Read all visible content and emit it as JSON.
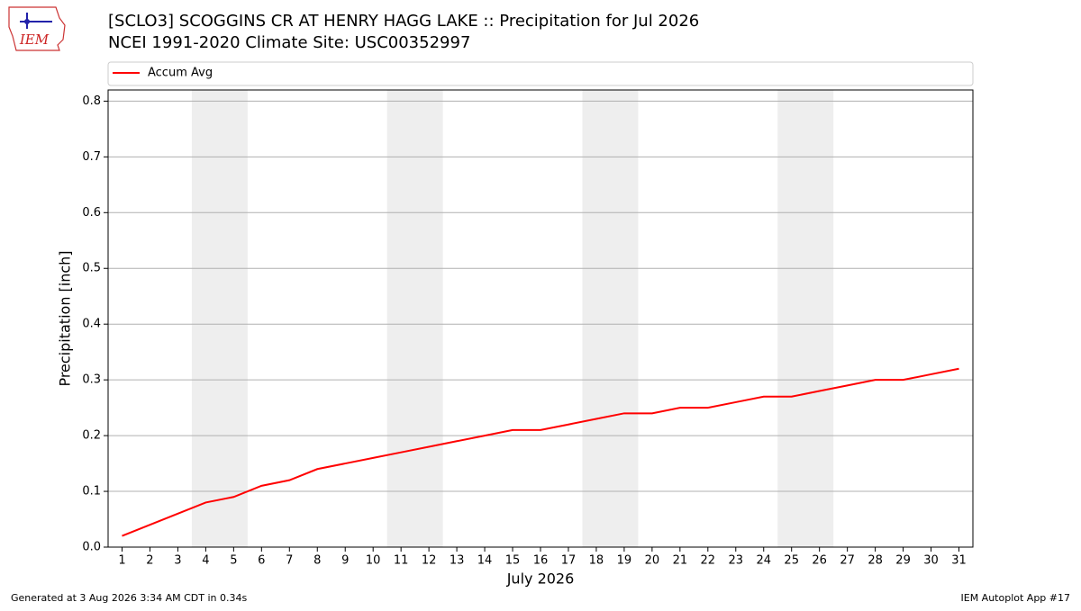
{
  "logo_text": "IEM",
  "chart_data": {
    "type": "line",
    "title": "[SCLO3] SCOGGINS CR  AT HENRY HAGG LAKE :: Precipitation for Jul 2026",
    "subtitle": "NCEI 1991-2020 Climate Site: USC00352997",
    "x_label": "July 2026",
    "y_label": "Precipitation [inch]",
    "x": [
      1,
      2,
      3,
      4,
      5,
      6,
      7,
      8,
      9,
      10,
      11,
      12,
      13,
      14,
      15,
      16,
      17,
      18,
      19,
      20,
      21,
      22,
      23,
      24,
      25,
      26,
      27,
      28,
      29,
      30,
      31
    ],
    "series": [
      {
        "name": "Accum Avg",
        "color": "#ff0000",
        "values": [
          0.02,
          0.04,
          0.06,
          0.08,
          0.09,
          0.11,
          0.12,
          0.14,
          0.15,
          0.16,
          0.17,
          0.18,
          0.19,
          0.2,
          0.21,
          0.21,
          0.22,
          0.23,
          0.24,
          0.24,
          0.25,
          0.25,
          0.26,
          0.27,
          0.27,
          0.28,
          0.29,
          0.3,
          0.3,
          0.31,
          0.32
        ]
      }
    ],
    "xlim": [
      0.5,
      31.5
    ],
    "ylim": [
      0,
      0.82
    ],
    "xticks": [
      1,
      2,
      3,
      4,
      5,
      6,
      7,
      8,
      9,
      10,
      11,
      12,
      13,
      14,
      15,
      16,
      17,
      18,
      19,
      20,
      21,
      22,
      23,
      24,
      25,
      26,
      27,
      28,
      29,
      30,
      31
    ],
    "yticks": [
      {
        "value": 0,
        "label": "0.0"
      },
      0.1,
      0.2,
      0.3,
      0.4,
      0.5,
      0.6,
      0.7,
      0.8
    ],
    "shaded_spans": [
      [
        3.5,
        5.5
      ],
      [
        10.5,
        12.5
      ],
      [
        17.5,
        19.5
      ],
      [
        24.5,
        26.5
      ]
    ],
    "shade_color": "#eeeeee",
    "grid": "y",
    "legend": "top",
    "footer_left": "Generated at 3 Aug 2026 3:34 AM CDT in 0.34s",
    "footer_right": "IEM Autoplot App #17"
  }
}
